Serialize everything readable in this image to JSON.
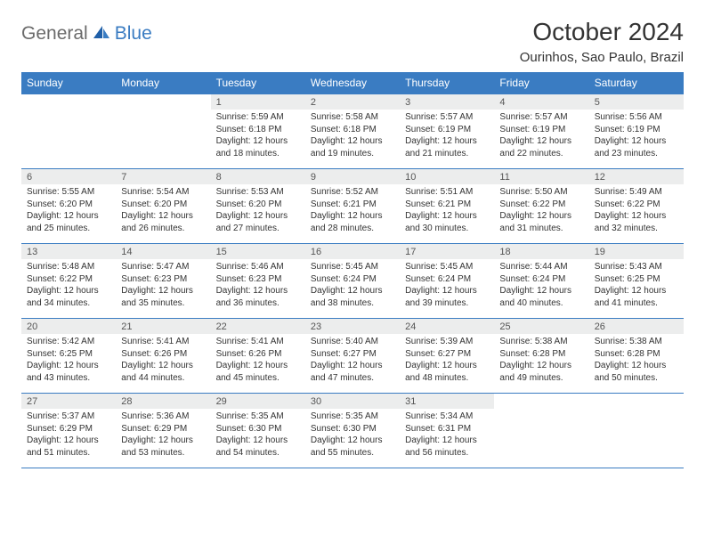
{
  "logo": {
    "part1": "General",
    "part2": "Blue"
  },
  "colors": {
    "accent": "#3a7cc2",
    "header_bg": "#3a7cc2",
    "header_fg": "#ffffff",
    "daynum_bg": "#eceded",
    "daynum_fg": "#555555",
    "text": "#333333",
    "logo_gray": "#6b6b6b",
    "border": "#3a7cc2",
    "page_bg": "#ffffff"
  },
  "title": "October 2024",
  "location": "Ourinhos, Sao Paulo, Brazil",
  "weekdays": [
    "Sunday",
    "Monday",
    "Tuesday",
    "Wednesday",
    "Thursday",
    "Friday",
    "Saturday"
  ],
  "weeks": [
    [
      null,
      null,
      {
        "n": "1",
        "sunrise": "Sunrise: 5:59 AM",
        "sunset": "Sunset: 6:18 PM",
        "day1": "Daylight: 12 hours",
        "day2": "and 18 minutes."
      },
      {
        "n": "2",
        "sunrise": "Sunrise: 5:58 AM",
        "sunset": "Sunset: 6:18 PM",
        "day1": "Daylight: 12 hours",
        "day2": "and 19 minutes."
      },
      {
        "n": "3",
        "sunrise": "Sunrise: 5:57 AM",
        "sunset": "Sunset: 6:19 PM",
        "day1": "Daylight: 12 hours",
        "day2": "and 21 minutes."
      },
      {
        "n": "4",
        "sunrise": "Sunrise: 5:57 AM",
        "sunset": "Sunset: 6:19 PM",
        "day1": "Daylight: 12 hours",
        "day2": "and 22 minutes."
      },
      {
        "n": "5",
        "sunrise": "Sunrise: 5:56 AM",
        "sunset": "Sunset: 6:19 PM",
        "day1": "Daylight: 12 hours",
        "day2": "and 23 minutes."
      }
    ],
    [
      {
        "n": "6",
        "sunrise": "Sunrise: 5:55 AM",
        "sunset": "Sunset: 6:20 PM",
        "day1": "Daylight: 12 hours",
        "day2": "and 25 minutes."
      },
      {
        "n": "7",
        "sunrise": "Sunrise: 5:54 AM",
        "sunset": "Sunset: 6:20 PM",
        "day1": "Daylight: 12 hours",
        "day2": "and 26 minutes."
      },
      {
        "n": "8",
        "sunrise": "Sunrise: 5:53 AM",
        "sunset": "Sunset: 6:20 PM",
        "day1": "Daylight: 12 hours",
        "day2": "and 27 minutes."
      },
      {
        "n": "9",
        "sunrise": "Sunrise: 5:52 AM",
        "sunset": "Sunset: 6:21 PM",
        "day1": "Daylight: 12 hours",
        "day2": "and 28 minutes."
      },
      {
        "n": "10",
        "sunrise": "Sunrise: 5:51 AM",
        "sunset": "Sunset: 6:21 PM",
        "day1": "Daylight: 12 hours",
        "day2": "and 30 minutes."
      },
      {
        "n": "11",
        "sunrise": "Sunrise: 5:50 AM",
        "sunset": "Sunset: 6:22 PM",
        "day1": "Daylight: 12 hours",
        "day2": "and 31 minutes."
      },
      {
        "n": "12",
        "sunrise": "Sunrise: 5:49 AM",
        "sunset": "Sunset: 6:22 PM",
        "day1": "Daylight: 12 hours",
        "day2": "and 32 minutes."
      }
    ],
    [
      {
        "n": "13",
        "sunrise": "Sunrise: 5:48 AM",
        "sunset": "Sunset: 6:22 PM",
        "day1": "Daylight: 12 hours",
        "day2": "and 34 minutes."
      },
      {
        "n": "14",
        "sunrise": "Sunrise: 5:47 AM",
        "sunset": "Sunset: 6:23 PM",
        "day1": "Daylight: 12 hours",
        "day2": "and 35 minutes."
      },
      {
        "n": "15",
        "sunrise": "Sunrise: 5:46 AM",
        "sunset": "Sunset: 6:23 PM",
        "day1": "Daylight: 12 hours",
        "day2": "and 36 minutes."
      },
      {
        "n": "16",
        "sunrise": "Sunrise: 5:45 AM",
        "sunset": "Sunset: 6:24 PM",
        "day1": "Daylight: 12 hours",
        "day2": "and 38 minutes."
      },
      {
        "n": "17",
        "sunrise": "Sunrise: 5:45 AM",
        "sunset": "Sunset: 6:24 PM",
        "day1": "Daylight: 12 hours",
        "day2": "and 39 minutes."
      },
      {
        "n": "18",
        "sunrise": "Sunrise: 5:44 AM",
        "sunset": "Sunset: 6:24 PM",
        "day1": "Daylight: 12 hours",
        "day2": "and 40 minutes."
      },
      {
        "n": "19",
        "sunrise": "Sunrise: 5:43 AM",
        "sunset": "Sunset: 6:25 PM",
        "day1": "Daylight: 12 hours",
        "day2": "and 41 minutes."
      }
    ],
    [
      {
        "n": "20",
        "sunrise": "Sunrise: 5:42 AM",
        "sunset": "Sunset: 6:25 PM",
        "day1": "Daylight: 12 hours",
        "day2": "and 43 minutes."
      },
      {
        "n": "21",
        "sunrise": "Sunrise: 5:41 AM",
        "sunset": "Sunset: 6:26 PM",
        "day1": "Daylight: 12 hours",
        "day2": "and 44 minutes."
      },
      {
        "n": "22",
        "sunrise": "Sunrise: 5:41 AM",
        "sunset": "Sunset: 6:26 PM",
        "day1": "Daylight: 12 hours",
        "day2": "and 45 minutes."
      },
      {
        "n": "23",
        "sunrise": "Sunrise: 5:40 AM",
        "sunset": "Sunset: 6:27 PM",
        "day1": "Daylight: 12 hours",
        "day2": "and 47 minutes."
      },
      {
        "n": "24",
        "sunrise": "Sunrise: 5:39 AM",
        "sunset": "Sunset: 6:27 PM",
        "day1": "Daylight: 12 hours",
        "day2": "and 48 minutes."
      },
      {
        "n": "25",
        "sunrise": "Sunrise: 5:38 AM",
        "sunset": "Sunset: 6:28 PM",
        "day1": "Daylight: 12 hours",
        "day2": "and 49 minutes."
      },
      {
        "n": "26",
        "sunrise": "Sunrise: 5:38 AM",
        "sunset": "Sunset: 6:28 PM",
        "day1": "Daylight: 12 hours",
        "day2": "and 50 minutes."
      }
    ],
    [
      {
        "n": "27",
        "sunrise": "Sunrise: 5:37 AM",
        "sunset": "Sunset: 6:29 PM",
        "day1": "Daylight: 12 hours",
        "day2": "and 51 minutes."
      },
      {
        "n": "28",
        "sunrise": "Sunrise: 5:36 AM",
        "sunset": "Sunset: 6:29 PM",
        "day1": "Daylight: 12 hours",
        "day2": "and 53 minutes."
      },
      {
        "n": "29",
        "sunrise": "Sunrise: 5:35 AM",
        "sunset": "Sunset: 6:30 PM",
        "day1": "Daylight: 12 hours",
        "day2": "and 54 minutes."
      },
      {
        "n": "30",
        "sunrise": "Sunrise: 5:35 AM",
        "sunset": "Sunset: 6:30 PM",
        "day1": "Daylight: 12 hours",
        "day2": "and 55 minutes."
      },
      {
        "n": "31",
        "sunrise": "Sunrise: 5:34 AM",
        "sunset": "Sunset: 6:31 PM",
        "day1": "Daylight: 12 hours",
        "day2": "and 56 minutes."
      },
      null,
      null
    ]
  ]
}
